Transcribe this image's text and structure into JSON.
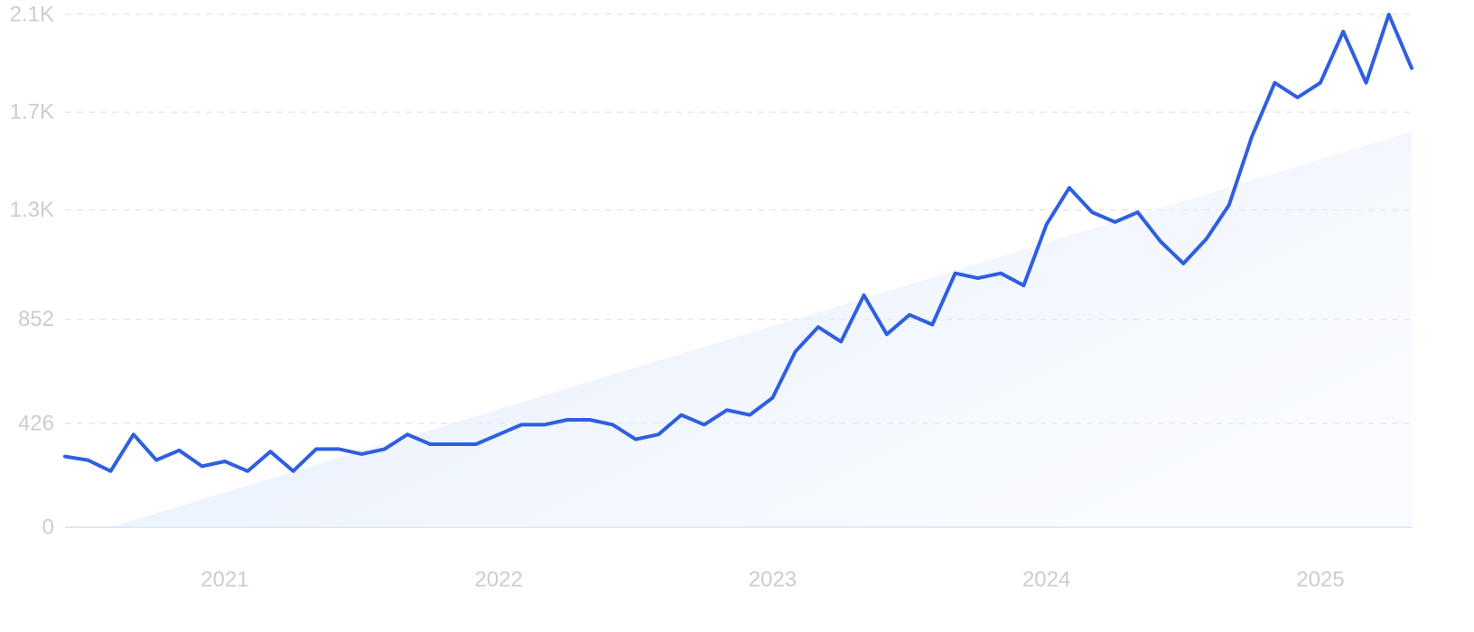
{
  "chart_data": {
    "type": "line",
    "title": "",
    "xlabel": "",
    "ylabel": "",
    "ylim": [
      0,
      2100
    ],
    "xlim": [
      "2020-06",
      "2025-05"
    ],
    "grid": true,
    "legend": "none",
    "y_ticks": [
      {
        "value": 0,
        "label": "0"
      },
      {
        "value": 426,
        "label": "426"
      },
      {
        "value": 852,
        "label": "852"
      },
      {
        "value": 1300,
        "label": "1.3K"
      },
      {
        "value": 1700,
        "label": "1.7K"
      },
      {
        "value": 2100,
        "label": "2.1K"
      }
    ],
    "x_ticks": [
      {
        "value": "2021-01",
        "label": "2021"
      },
      {
        "value": "2022-01",
        "label": "2022"
      },
      {
        "value": "2023-01",
        "label": "2023"
      },
      {
        "value": "2024-01",
        "label": "2024"
      },
      {
        "value": "2025-01",
        "label": "2025"
      }
    ],
    "trend": {
      "start": [
        "2020-08",
        0
      ],
      "end": [
        "2025-05",
        1620
      ]
    },
    "series": [
      {
        "x": [
          "2020-06",
          "2020-07",
          "2020-08",
          "2020-09",
          "2020-10",
          "2020-11",
          "2020-12",
          "2021-01",
          "2021-02",
          "2021-03",
          "2021-04",
          "2021-05",
          "2021-06",
          "2021-07",
          "2021-08",
          "2021-09",
          "2021-10",
          "2021-11",
          "2021-12",
          "2022-01",
          "2022-02",
          "2022-03",
          "2022-04",
          "2022-05",
          "2022-06",
          "2022-07",
          "2022-08",
          "2022-09",
          "2022-10",
          "2022-11",
          "2022-12",
          "2023-01",
          "2023-02",
          "2023-03",
          "2023-04",
          "2023-05",
          "2023-06",
          "2023-07",
          "2023-08",
          "2023-09",
          "2023-10",
          "2023-11",
          "2023-12",
          "2024-01",
          "2024-02",
          "2024-03",
          "2024-04",
          "2024-05",
          "2024-06",
          "2024-07",
          "2024-08",
          "2024-09",
          "2024-10",
          "2024-11",
          "2024-12",
          "2025-01",
          "2025-02",
          "2025-03",
          "2025-04",
          "2025-05"
        ],
        "values": [
          290,
          275,
          230,
          380,
          275,
          315,
          250,
          270,
          230,
          310,
          230,
          320,
          320,
          300,
          320,
          380,
          340,
          340,
          340,
          380,
          420,
          420,
          440,
          440,
          420,
          360,
          380,
          460,
          420,
          480,
          460,
          530,
          720,
          820,
          760,
          950,
          790,
          870,
          830,
          1040,
          1020,
          1040,
          990,
          1240,
          1390,
          1290,
          1250,
          1290,
          1170,
          1080,
          1180,
          1320,
          1600,
          1820,
          1760,
          1820,
          2030,
          1820,
          2100,
          1880
        ]
      }
    ]
  }
}
